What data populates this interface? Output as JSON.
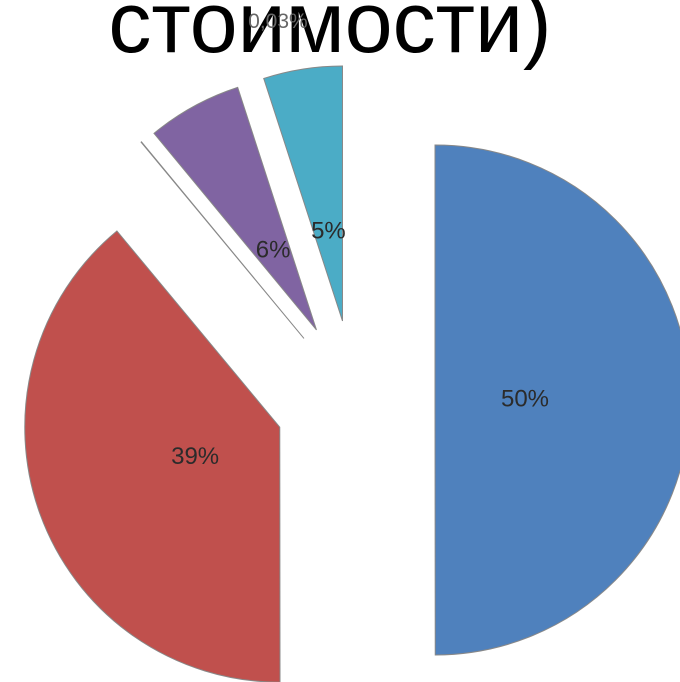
{
  "chart_data": {
    "type": "pie",
    "title": "стоимости)",
    "values": [
      50,
      39,
      0.03,
      6,
      5
    ],
    "value_labels": [
      "50%",
      "39%",
      "0,03%",
      "6%",
      "5%"
    ],
    "colors": [
      "#4f81bd",
      "#c0504d",
      "#9bbb59",
      "#8064a2",
      "#4bacc6"
    ]
  }
}
